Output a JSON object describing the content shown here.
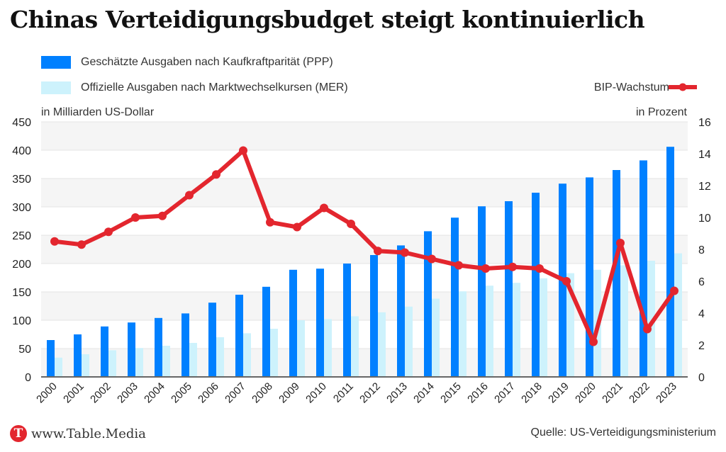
{
  "title": "Chinas Verteidigungsbudget steigt kontinuierlich",
  "legend": {
    "ppp": "Geschätzte Ausgaben nach Kaufkraftparität (PPP)",
    "mer": "Offizielle Ausgaben nach Marktwechselkursen (MER)",
    "gdp": "BIP-Wachstum"
  },
  "footer": {
    "logo_letter": "T",
    "site": "www.Table.Media",
    "source": "Quelle: US-Verteidigungsministerium"
  },
  "colors": {
    "ppp": "#0080ff",
    "mer": "#cdf2fc",
    "gdp": "#e3262e",
    "band": "#f5f5f5",
    "grid": "#e4e4e4"
  },
  "chart_data": {
    "type": "bar+line",
    "title": "Chinas Verteidigungsbudget steigt kontinuierlich",
    "ylabel_left": "in Milliarden US-Dollar",
    "ylabel_right": "in Prozent",
    "ylim_left": [
      0,
      450
    ],
    "yticks_left": [
      0,
      50,
      100,
      150,
      200,
      250,
      300,
      350,
      400,
      450
    ],
    "ylim_right": [
      0,
      16
    ],
    "yticks_right": [
      0,
      2,
      4,
      6,
      8,
      10,
      12,
      14,
      16
    ],
    "grid": true,
    "legend_position": "top",
    "categories": [
      "2000",
      "2001",
      "2002",
      "2003",
      "2004",
      "2005",
      "2006",
      "2007",
      "2008",
      "2009",
      "2010",
      "2011",
      "2012",
      "2013",
      "2014",
      "2015",
      "2016",
      "2017",
      "2018",
      "2019",
      "2020",
      "2021",
      "2022",
      "2023"
    ],
    "series": [
      {
        "name": "Geschätzte Ausgaben nach Kaufkraftparität (PPP)",
        "type": "bar",
        "axis": "left",
        "values": [
          65,
          75,
          89,
          96,
          104,
          112,
          131,
          145,
          159,
          189,
          191,
          200,
          215,
          232,
          257,
          281,
          301,
          310,
          325,
          341,
          352,
          365,
          382,
          406
        ]
      },
      {
        "name": "Offizielle Ausgaben nach Marktwechselkursen (MER)",
        "type": "bar",
        "axis": "left",
        "values": [
          34,
          40,
          47,
          51,
          55,
          60,
          70,
          77,
          85,
          100,
          102,
          107,
          114,
          124,
          138,
          151,
          161,
          166,
          174,
          183,
          189,
          197,
          205,
          218
        ]
      },
      {
        "name": "BIP-Wachstum",
        "type": "line",
        "axis": "right",
        "values": [
          8.5,
          8.3,
          9.1,
          10.0,
          10.1,
          11.4,
          12.7,
          14.2,
          9.7,
          9.4,
          10.6,
          9.6,
          7.9,
          7.8,
          7.4,
          7.0,
          6.8,
          6.9,
          6.8,
          6.0,
          2.2,
          8.4,
          3.0,
          5.4
        ]
      }
    ]
  }
}
